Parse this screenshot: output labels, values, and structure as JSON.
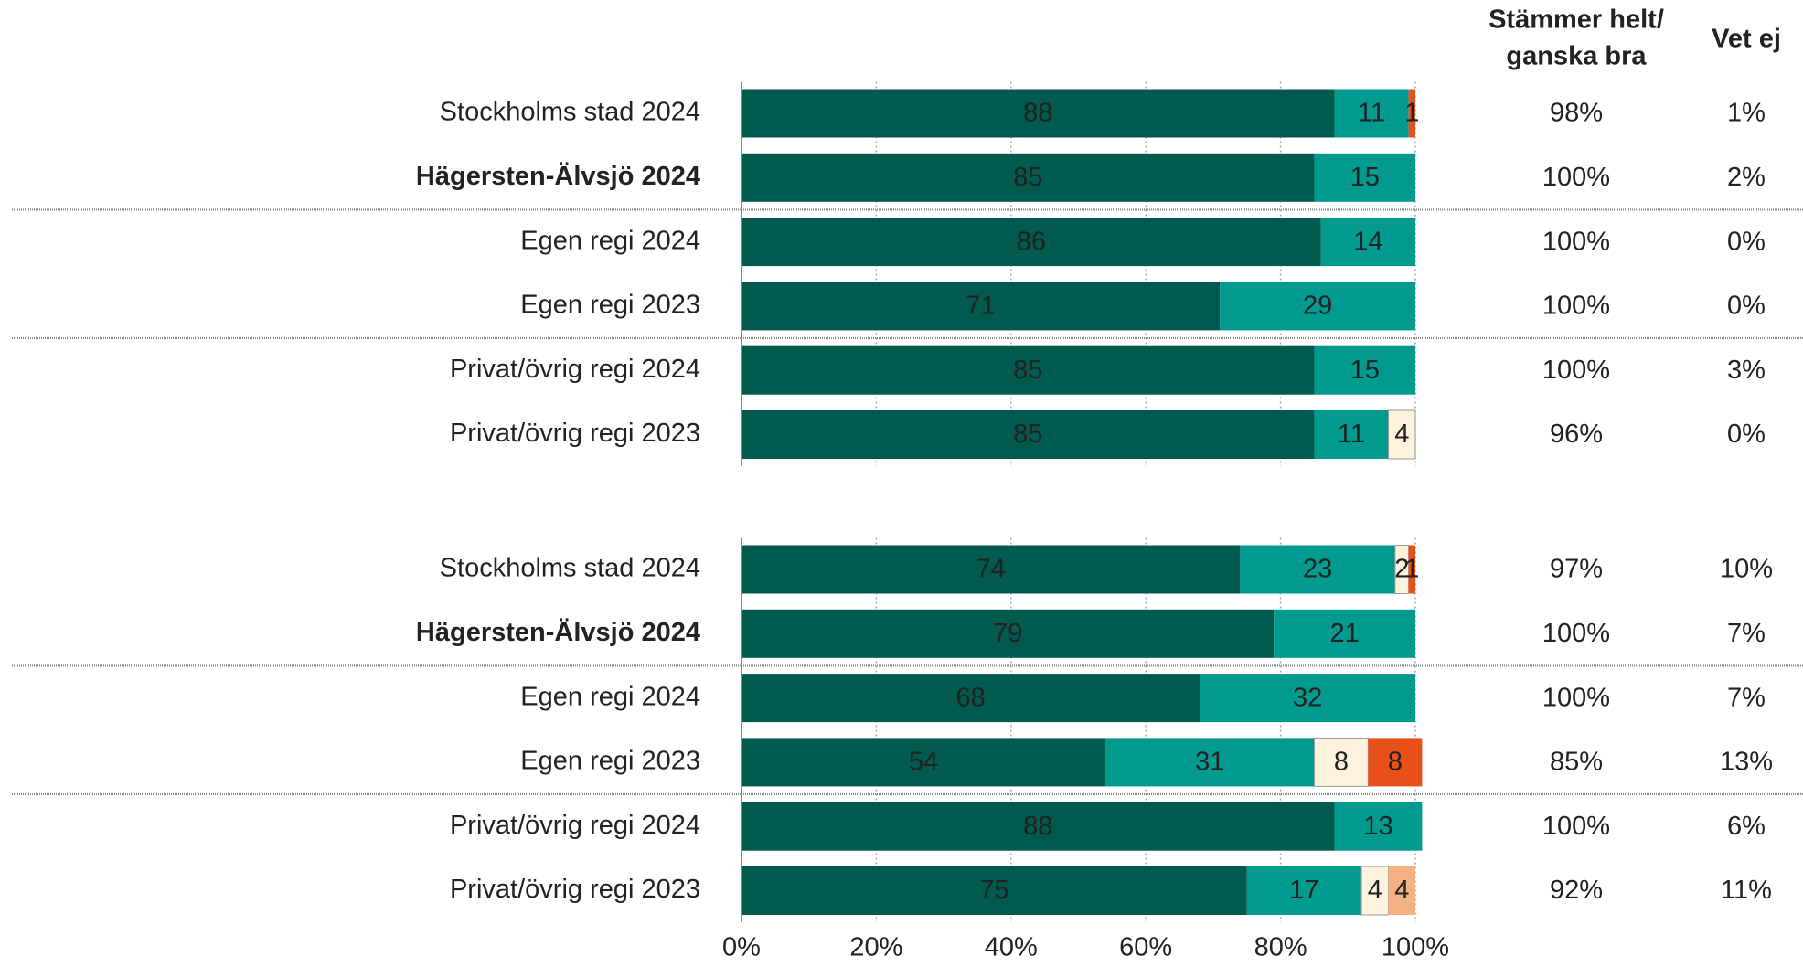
{
  "column_headers": [
    [
      "Stämmer helt/",
      "ganska bra"
    ],
    [
      "Vet ej"
    ]
  ],
  "chart_data": [
    {
      "type": "stacked_barh",
      "xlim": [
        0,
        100
      ],
      "xticks": [
        0,
        20,
        40,
        60,
        80,
        100
      ],
      "grid": true,
      "highlight_index": 1,
      "separators_after": [
        1,
        3
      ],
      "categories": [
        "Stockholms stad 2024",
        "Hägersten-Älvsjö 2024",
        "Egen regi 2024",
        "Egen regi 2023",
        "Privat/övrig regi 2024",
        "Privat/övrig regi 2023"
      ],
      "series": [
        {
          "color": "#005a4e",
          "values": [
            88,
            85,
            86,
            71,
            85,
            85
          ]
        },
        {
          "color": "#009a8f",
          "values": [
            11,
            15,
            14,
            29,
            15,
            11
          ]
        },
        {
          "color": "#fdf3dc",
          "values": [
            null,
            null,
            null,
            null,
            null,
            4
          ]
        },
        {
          "color": "#f4b183",
          "values": [
            null,
            null,
            null,
            null,
            null,
            null
          ]
        },
        {
          "color": "#e8501a",
          "values": [
            1,
            null,
            null,
            null,
            null,
            null
          ]
        }
      ],
      "columns": [
        [
          "98%",
          "100%",
          "100%",
          "100%",
          "100%",
          "96%"
        ],
        [
          "1%",
          "2%",
          "0%",
          "0%",
          "3%",
          "0%"
        ]
      ]
    },
    {
      "type": "stacked_barh",
      "xlim": [
        0,
        100
      ],
      "xticks": [
        {
          "value": 0,
          "label": "0%"
        },
        {
          "value": 20,
          "label": "20%"
        },
        {
          "value": 40,
          "label": "40%"
        },
        {
          "value": 60,
          "label": "60%"
        },
        {
          "value": 80,
          "label": "80%"
        },
        {
          "value": 100,
          "label": "100%"
        }
      ],
      "grid": true,
      "highlight_index": 1,
      "separators_after": [
        1,
        3
      ],
      "categories": [
        "Stockholms stad 2024",
        "Hägersten-Älvsjö 2024",
        "Egen regi 2024",
        "Egen regi 2023",
        "Privat/övrig regi 2024",
        "Privat/övrig regi 2023"
      ],
      "series": [
        {
          "color": "#005a4e",
          "values": [
            74,
            79,
            68,
            54,
            88,
            75
          ]
        },
        {
          "color": "#009a8f",
          "values": [
            23,
            21,
            32,
            31,
            13,
            17
          ]
        },
        {
          "color": "#fdf3dc",
          "values": [
            2,
            null,
            null,
            8,
            null,
            4
          ]
        },
        {
          "color": "#f4b183",
          "values": [
            null,
            null,
            null,
            null,
            null,
            4
          ]
        },
        {
          "color": "#e8501a",
          "values": [
            1,
            null,
            null,
            8,
            null,
            null
          ]
        }
      ],
      "columns": [
        [
          "97%",
          "100%",
          "100%",
          "85%",
          "100%",
          "92%"
        ],
        [
          "10%",
          "7%",
          "7%",
          "13%",
          "6%",
          "11%"
        ]
      ]
    }
  ]
}
